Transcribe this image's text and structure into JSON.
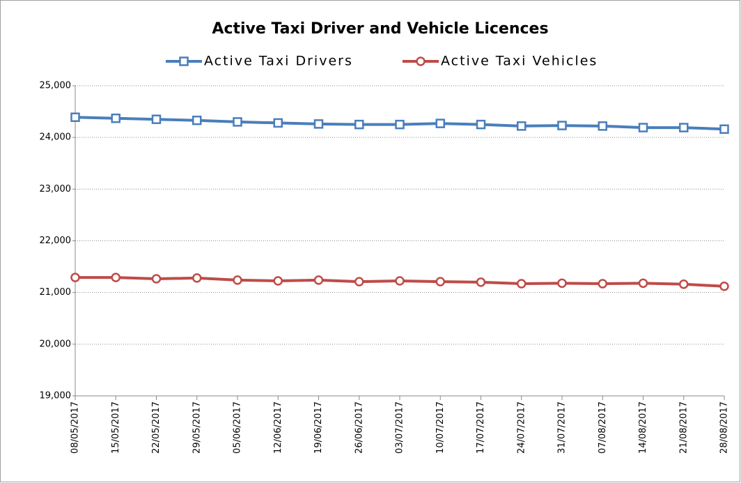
{
  "chart_data": {
    "type": "line",
    "title": "Active Taxi Driver and Vehicle Licences",
    "categories": [
      "08/05/2017",
      "15/05/2017",
      "22/05/2017",
      "29/05/2017",
      "05/06/2017",
      "12/06/2017",
      "19/06/2017",
      "26/06/2017",
      "03/07/2017",
      "10/07/2017",
      "17/07/2017",
      "24/07/2017",
      "31/07/2017",
      "07/08/2017",
      "14/08/2017",
      "21/08/2017",
      "28/08/2017"
    ],
    "series": [
      {
        "name": "Active Taxi Drivers",
        "color": "#4a7ebb",
        "marker": "square",
        "values": [
          24390,
          24370,
          24350,
          24330,
          24300,
          24280,
          24260,
          24250,
          24250,
          24270,
          24250,
          24220,
          24230,
          24220,
          24190,
          24190,
          24160
        ]
      },
      {
        "name": "Active Taxi Vehicles",
        "color": "#be4b48",
        "marker": "circle",
        "values": [
          21290,
          21290,
          21265,
          21280,
          21240,
          21225,
          21240,
          21210,
          21225,
          21210,
          21200,
          21170,
          21180,
          21170,
          21180,
          21160,
          21120
        ]
      }
    ],
    "ylim": [
      19000,
      25000
    ],
    "yticks": [
      {
        "value": 19000,
        "label": "19,000"
      },
      {
        "value": 20000,
        "label": "20,000"
      },
      {
        "value": 21000,
        "label": "21,000"
      },
      {
        "value": 22000,
        "label": "22,000"
      },
      {
        "value": 23000,
        "label": "23,000"
      },
      {
        "value": 24000,
        "label": "24,000"
      },
      {
        "value": 25000,
        "label": "25,000"
      }
    ],
    "grid": true,
    "legend": "top"
  }
}
